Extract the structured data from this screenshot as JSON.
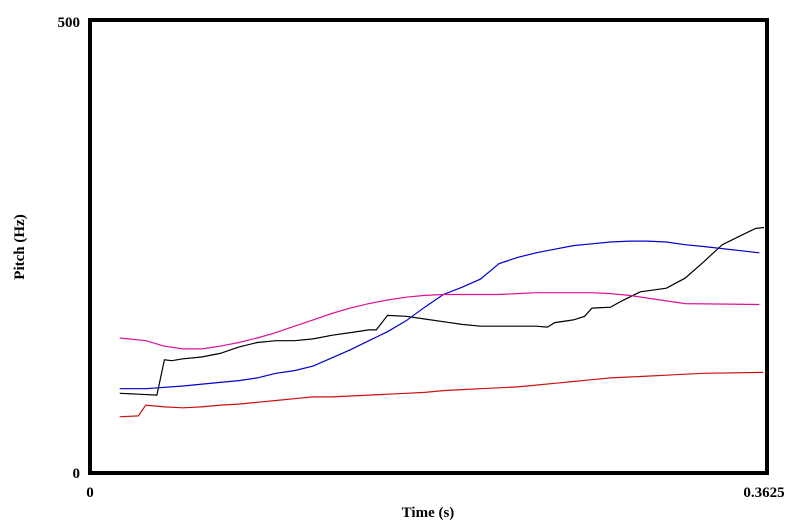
{
  "chart_data": {
    "type": "line",
    "title": "",
    "xlabel": "Time (s)",
    "ylabel": "Pitch (Hz)",
    "xlim": [
      0,
      0.3625
    ],
    "ylim": [
      0,
      500
    ],
    "x_tick_labels": [
      "0",
      "0.3625"
    ],
    "y_tick_labels": [
      "0",
      "500"
    ],
    "grid": false,
    "legend": "none",
    "series": [
      {
        "color": "#000000",
        "points": [
          [
            0.016,
            88
          ],
          [
            0.026,
            87
          ],
          [
            0.036,
            86
          ],
          [
            0.04,
            125
          ],
          [
            0.044,
            124
          ],
          [
            0.05,
            126
          ],
          [
            0.06,
            128
          ],
          [
            0.07,
            132
          ],
          [
            0.08,
            139
          ],
          [
            0.09,
            144
          ],
          [
            0.1,
            146
          ],
          [
            0.11,
            146
          ],
          [
            0.12,
            148
          ],
          [
            0.13,
            152
          ],
          [
            0.14,
            155
          ],
          [
            0.15,
            158
          ],
          [
            0.154,
            158
          ],
          [
            0.16,
            174
          ],
          [
            0.17,
            173
          ],
          [
            0.18,
            170
          ],
          [
            0.19,
            167
          ],
          [
            0.2,
            164
          ],
          [
            0.21,
            162
          ],
          [
            0.22,
            162
          ],
          [
            0.23,
            162
          ],
          [
            0.24,
            162
          ],
          [
            0.246,
            161
          ],
          [
            0.25,
            166
          ],
          [
            0.26,
            169
          ],
          [
            0.266,
            173
          ],
          [
            0.27,
            182
          ],
          [
            0.28,
            183
          ],
          [
            0.286,
            190
          ],
          [
            0.296,
            200
          ],
          [
            0.31,
            204
          ],
          [
            0.32,
            215
          ],
          [
            0.33,
            233
          ],
          [
            0.34,
            252
          ],
          [
            0.35,
            262
          ],
          [
            0.358,
            270
          ],
          [
            0.3625,
            271
          ]
        ]
      },
      {
        "color": "#0000cc",
        "points": [
          [
            0.016,
            93
          ],
          [
            0.03,
            93
          ],
          [
            0.05,
            96
          ],
          [
            0.07,
            100
          ],
          [
            0.08,
            102
          ],
          [
            0.09,
            105
          ],
          [
            0.1,
            110
          ],
          [
            0.11,
            113
          ],
          [
            0.12,
            118
          ],
          [
            0.13,
            127
          ],
          [
            0.14,
            136
          ],
          [
            0.15,
            146
          ],
          [
            0.16,
            156
          ],
          [
            0.17,
            168
          ],
          [
            0.18,
            183
          ],
          [
            0.19,
            197
          ],
          [
            0.2,
            205
          ],
          [
            0.21,
            214
          ],
          [
            0.22,
            231
          ],
          [
            0.23,
            238
          ],
          [
            0.24,
            243
          ],
          [
            0.25,
            247
          ],
          [
            0.26,
            251
          ],
          [
            0.27,
            253
          ],
          [
            0.28,
            255
          ],
          [
            0.29,
            256
          ],
          [
            0.3,
            256
          ],
          [
            0.31,
            255
          ],
          [
            0.32,
            252
          ],
          [
            0.33,
            250
          ],
          [
            0.36,
            243
          ]
        ]
      },
      {
        "color": "#dd1199",
        "points": [
          [
            0.016,
            149
          ],
          [
            0.03,
            146
          ],
          [
            0.04,
            140
          ],
          [
            0.05,
            137
          ],
          [
            0.06,
            137
          ],
          [
            0.07,
            140
          ],
          [
            0.08,
            144
          ],
          [
            0.09,
            149
          ],
          [
            0.1,
            155
          ],
          [
            0.11,
            162
          ],
          [
            0.12,
            169
          ],
          [
            0.13,
            176
          ],
          [
            0.14,
            182
          ],
          [
            0.15,
            187
          ],
          [
            0.16,
            191
          ],
          [
            0.17,
            194
          ],
          [
            0.18,
            196
          ],
          [
            0.19,
            197
          ],
          [
            0.2,
            197
          ],
          [
            0.21,
            197
          ],
          [
            0.22,
            197
          ],
          [
            0.23,
            198
          ],
          [
            0.24,
            199
          ],
          [
            0.25,
            199
          ],
          [
            0.26,
            199
          ],
          [
            0.27,
            199
          ],
          [
            0.28,
            198
          ],
          [
            0.29,
            196
          ],
          [
            0.3,
            193
          ],
          [
            0.31,
            190
          ],
          [
            0.32,
            187
          ],
          [
            0.36,
            186
          ]
        ]
      },
      {
        "color": "#cc1111",
        "points": [
          [
            0.016,
            62
          ],
          [
            0.026,
            63
          ],
          [
            0.03,
            75
          ],
          [
            0.04,
            73
          ],
          [
            0.05,
            72
          ],
          [
            0.06,
            73
          ],
          [
            0.07,
            75
          ],
          [
            0.08,
            76
          ],
          [
            0.09,
            78
          ],
          [
            0.1,
            80
          ],
          [
            0.11,
            82
          ],
          [
            0.12,
            84
          ],
          [
            0.13,
            84
          ],
          [
            0.14,
            85
          ],
          [
            0.15,
            86
          ],
          [
            0.16,
            87
          ],
          [
            0.17,
            88
          ],
          [
            0.18,
            89
          ],
          [
            0.19,
            91
          ],
          [
            0.2,
            92
          ],
          [
            0.21,
            93
          ],
          [
            0.22,
            94
          ],
          [
            0.23,
            95
          ],
          [
            0.24,
            97
          ],
          [
            0.25,
            99
          ],
          [
            0.26,
            101
          ],
          [
            0.27,
            103
          ],
          [
            0.28,
            105
          ],
          [
            0.29,
            106
          ],
          [
            0.3,
            107
          ],
          [
            0.31,
            108
          ],
          [
            0.32,
            109
          ],
          [
            0.33,
            110
          ],
          [
            0.362,
            111
          ]
        ]
      }
    ]
  }
}
